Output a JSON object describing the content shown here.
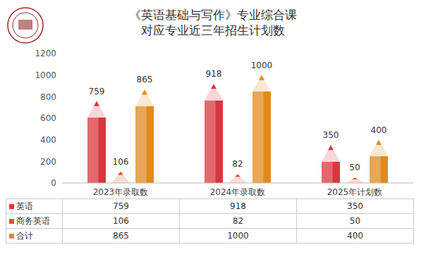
{
  "chart_data": {
    "type": "bar",
    "title": "《英语基础与写作》专业综合课\n对应专业近三年招生计划数",
    "categories": [
      "2023年录取数",
      "2024年录取数",
      "2025年计划数"
    ],
    "series": [
      {
        "name": "英语",
        "color": "#d9363e",
        "values": [
          759,
          918,
          350
        ]
      },
      {
        "name": "商务英语",
        "color": "#d8532e",
        "values": [
          106,
          82,
          50
        ]
      },
      {
        "name": "合计",
        "color": "#e08a1e",
        "values": [
          865,
          1000,
          400
        ]
      }
    ],
    "ylim": [
      0,
      1200
    ],
    "yticks": [
      0,
      200,
      400,
      600,
      800,
      1000,
      1200
    ],
    "grid": false,
    "data_labels": true
  }
}
